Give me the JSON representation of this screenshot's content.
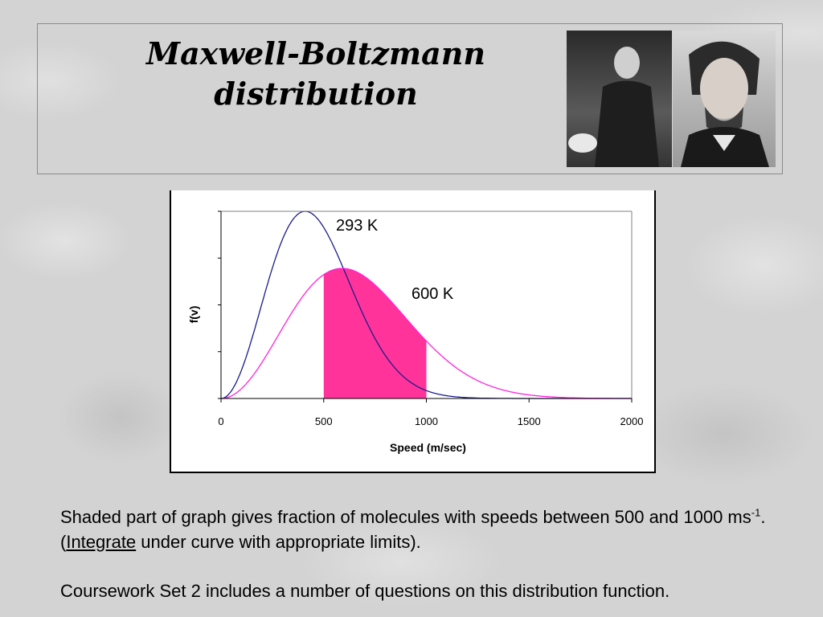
{
  "slide": {
    "title_line1": "Maxwell-Boltzmann",
    "title_line2": "distribution",
    "caption_part1": "Shaded part of graph gives fraction of molecules with speeds between 500 and 1000 ms",
    "caption_sup": "-1",
    "caption_part2": ". (",
    "caption_link": "Integrate",
    "caption_part3": " under curve with appropriate limits).",
    "caption2": "Coursework Set 2 includes a number of questions on this distribution function."
  },
  "colors": {
    "curve_293": "#1c1c8c",
    "curve_600": "#ff22dd",
    "shade": "#ff3399"
  },
  "chart_data": {
    "type": "line",
    "xlabel": "Speed (m/sec)",
    "ylabel": "f(v)",
    "xlim": [
      0,
      2000
    ],
    "x_ticks": [
      "0",
      "500",
      "1000",
      "1500",
      "2000"
    ],
    "series": [
      {
        "name": "293 K",
        "temperature_K": 293,
        "peak_speed": 410
      },
      {
        "name": "600 K",
        "temperature_K": 600,
        "peak_speed": 590
      }
    ],
    "shaded_range": [
      500,
      1000
    ],
    "shaded_series": "600 K",
    "grid": false
  }
}
